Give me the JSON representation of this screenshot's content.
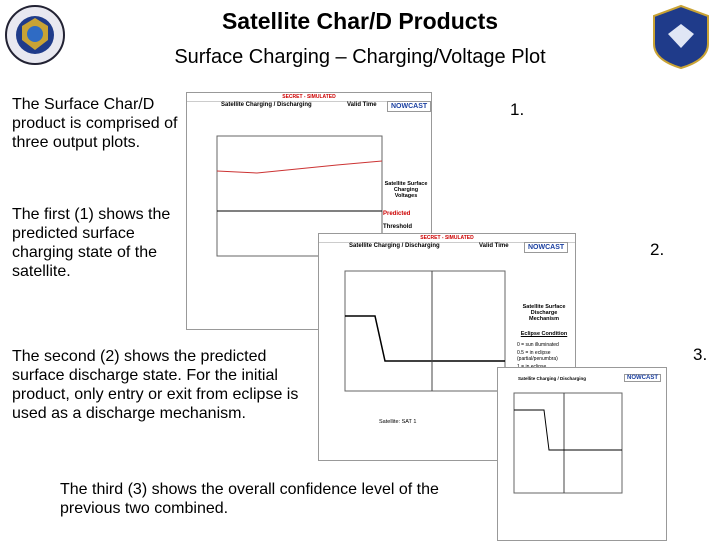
{
  "header": {
    "title": "Satellite Char/D Products",
    "subtitle": "Surface Charging – Charging/Voltage Plot"
  },
  "paragraphs": [
    "The Surface Char/D product is comprised of three output plots.",
    "The first (1) shows the predicted surface charging state of the satellite.",
    "The second (2) shows the predicted surface discharge state.  For the initial product, only entry or exit from eclipse is used as a discharge mechanism.",
    "The third (3) shows the overall confidence level of the previous two combined."
  ],
  "screenshots": [
    {
      "number": "1.",
      "banner": "SECRET - SIMULATED",
      "title": "Satellite Charging / Discharging",
      "valid_time": "Valid Time",
      "mode": "NOWCAST",
      "legend_title": "Satellite Surface Charging Voltages",
      "legend": [
        "Predicted",
        "Threshold"
      ]
    },
    {
      "number": "2.",
      "banner": "SECRET - SIMULATED",
      "title": "Satellite Charging / Discharging",
      "valid_time": "Valid Time",
      "mode": "NOWCAST",
      "legend_title": "Satellite Surface Discharge Mechanism",
      "legend_sub": "Eclipse Condition",
      "legend": [
        "0 = sun illuminated",
        "0.5 = in eclipse (partial/penumbra)",
        "1 = in eclipse"
      ],
      "footer": "Satellite: SAT 1"
    },
    {
      "number": "3.",
      "title": "Satellite Charging / Discharging",
      "mode": "NOWCAST"
    }
  ]
}
